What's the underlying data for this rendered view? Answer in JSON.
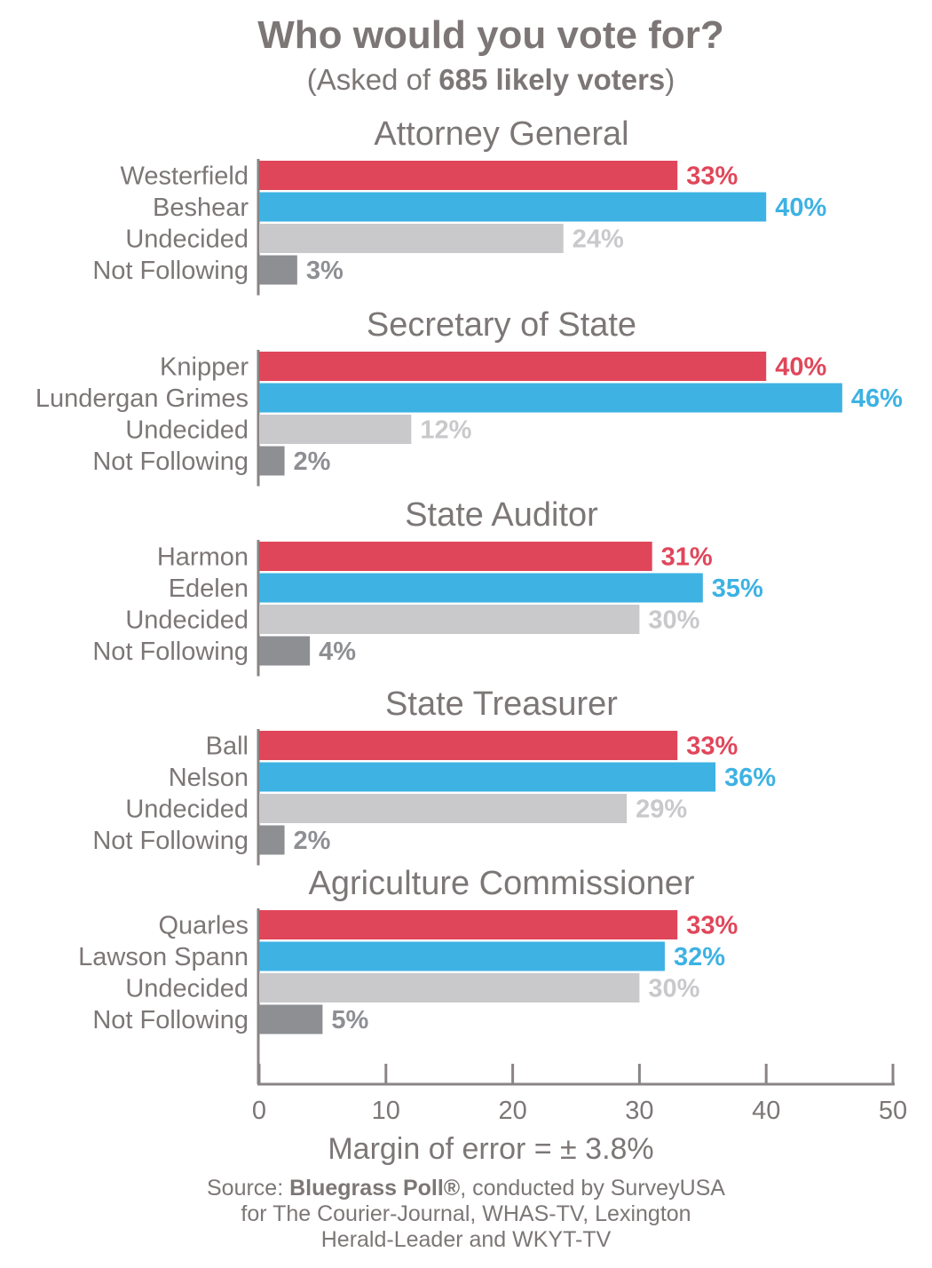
{
  "title": "Who would you vote for?",
  "subtitle": {
    "prefix": "(Asked of ",
    "bold": "685 likely voters",
    "suffix": ")"
  },
  "colors": {
    "republican": "#e0465a",
    "democrat": "#3db2e3",
    "undecided": "#c9c9cc",
    "not_following": "#8e8f93",
    "axis": "#8a8584",
    "text": "#7c7776"
  },
  "chart_data": {
    "type": "bar",
    "orientation": "horizontal",
    "unit": "%",
    "xlim": [
      0,
      50
    ],
    "xticks": [
      0,
      10,
      20,
      30,
      40,
      50
    ],
    "grid": false,
    "races": [
      {
        "title": "Attorney General",
        "rows": [
          {
            "label": "Westerfield",
            "value": 33,
            "display": "33%",
            "kind": "republican"
          },
          {
            "label": "Beshear",
            "value": 40,
            "display": "40%",
            "kind": "democrat"
          },
          {
            "label": "Undecided",
            "value": 24,
            "display": "24%",
            "kind": "undecided"
          },
          {
            "label": "Not Following",
            "value": 3,
            "display": "3%",
            "kind": "not_following"
          }
        ]
      },
      {
        "title": "Secretary of State",
        "rows": [
          {
            "label": "Knipper",
            "value": 40,
            "display": "40%",
            "kind": "republican"
          },
          {
            "label": "Lundergan Grimes",
            "value": 46,
            "display": "46%",
            "kind": "democrat"
          },
          {
            "label": "Undecided",
            "value": 12,
            "display": "12%",
            "kind": "undecided"
          },
          {
            "label": "Not Following",
            "value": 2,
            "display": "2%",
            "kind": "not_following"
          }
        ]
      },
      {
        "title": "State Auditor",
        "rows": [
          {
            "label": "Harmon",
            "value": 31,
            "display": "31%",
            "kind": "republican"
          },
          {
            "label": "Edelen",
            "value": 35,
            "display": "35%",
            "kind": "democrat"
          },
          {
            "label": "Undecided",
            "value": 30,
            "display": "30%",
            "kind": "undecided"
          },
          {
            "label": "Not Following",
            "value": 4,
            "display": "4%",
            "kind": "not_following"
          }
        ]
      },
      {
        "title": "State Treasurer",
        "rows": [
          {
            "label": "Ball",
            "value": 33,
            "display": "33%",
            "kind": "republican"
          },
          {
            "label": "Nelson",
            "value": 36,
            "display": "36%",
            "kind": "democrat"
          },
          {
            "label": "Undecided",
            "value": 29,
            "display": "29%",
            "kind": "undecided"
          },
          {
            "label": "Not Following",
            "value": 2,
            "display": "2%",
            "kind": "not_following"
          }
        ]
      },
      {
        "title": "Agriculture Commissioner",
        "rows": [
          {
            "label": "Quarles",
            "value": 33,
            "display": "33%",
            "kind": "republican"
          },
          {
            "label": "Lawson Spann",
            "value": 32,
            "display": "32%",
            "kind": "democrat"
          },
          {
            "label": "Undecided",
            "value": 30,
            "display": "30%",
            "kind": "undecided"
          },
          {
            "label": "Not Following",
            "value": 5,
            "display": "5%",
            "kind": "not_following"
          }
        ]
      }
    ]
  },
  "margin_of_error": "Margin of error = ± 3.8%",
  "source": {
    "prefix": "Source: ",
    "bold": "Bluegrass Poll®",
    "line1_suffix": ", conducted by SurveyUSA",
    "line2": "for The Courier-Journal, WHAS-TV, Lexington",
    "line3": "Herald-Leader and WKYT-TV"
  }
}
